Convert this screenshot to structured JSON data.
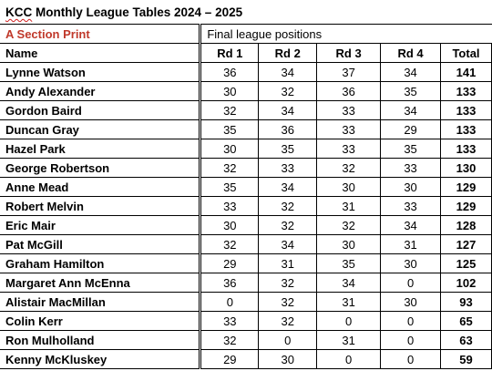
{
  "title_prefix": "KCC",
  "title_rest": " Monthly League Tables 2024 – 2025",
  "section_label": "A Section Print",
  "subtitle": "Final league positions",
  "headers": {
    "name": "Name",
    "rd1": "Rd 1",
    "rd2": "Rd 2",
    "rd3": "Rd 3",
    "rd4": "Rd 4",
    "total": "Total"
  },
  "rows": [
    {
      "name": "Lynne Watson",
      "rd1": "36",
      "rd2": "34",
      "rd3": "37",
      "rd4": "34",
      "total": "141"
    },
    {
      "name": "Andy Alexander",
      "rd1": "30",
      "rd2": "32",
      "rd3": "36",
      "rd4": "35",
      "total": "133"
    },
    {
      "name": "Gordon Baird",
      "rd1": "32",
      "rd2": "34",
      "rd3": "33",
      "rd4": "34",
      "total": "133"
    },
    {
      "name": "Duncan Gray",
      "rd1": "35",
      "rd2": "36",
      "rd3": "33",
      "rd4": "29",
      "total": "133"
    },
    {
      "name": "Hazel Park",
      "rd1": "30",
      "rd2": "35",
      "rd3": "33",
      "rd4": "35",
      "total": "133"
    },
    {
      "name": "George Robertson",
      "rd1": "32",
      "rd2": "33",
      "rd3": "32",
      "rd4": "33",
      "total": "130"
    },
    {
      "name": "Anne Mead",
      "rd1": "35",
      "rd2": "34",
      "rd3": "30",
      "rd4": "30",
      "total": "129"
    },
    {
      "name": "Robert Melvin",
      "rd1": "33",
      "rd2": "32",
      "rd3": "31",
      "rd4": "33",
      "total": "129"
    },
    {
      "name": "Eric Mair",
      "rd1": "30",
      "rd2": "32",
      "rd3": "32",
      "rd4": "34",
      "total": "128"
    },
    {
      "name": "Pat McGill",
      "rd1": "32",
      "rd2": "34",
      "rd3": "30",
      "rd4": "31",
      "total": "127"
    },
    {
      "name": "Graham Hamilton",
      "rd1": "29",
      "rd2": "31",
      "rd3": "35",
      "rd4": "30",
      "total": "125"
    },
    {
      "name": "Margaret Ann McEnna",
      "rd1": "36",
      "rd2": "32",
      "rd3": "34",
      "rd4": "0",
      "total": "102"
    },
    {
      "name": "Alistair MacMillan",
      "rd1": "0",
      "rd2": "32",
      "rd3": "31",
      "rd4": "30",
      "total": "93"
    },
    {
      "name": "Colin Kerr",
      "rd1": "33",
      "rd2": "32",
      "rd3": "0",
      "rd4": "0",
      "total": "65"
    },
    {
      "name": "Ron Mulholland",
      "rd1": "32",
      "rd2": "0",
      "rd3": "31",
      "rd4": "0",
      "total": "63"
    },
    {
      "name": "Kenny McKluskey",
      "rd1": "29",
      "rd2": "30",
      "rd3": "0",
      "rd4": "0",
      "total": "59"
    }
  ]
}
